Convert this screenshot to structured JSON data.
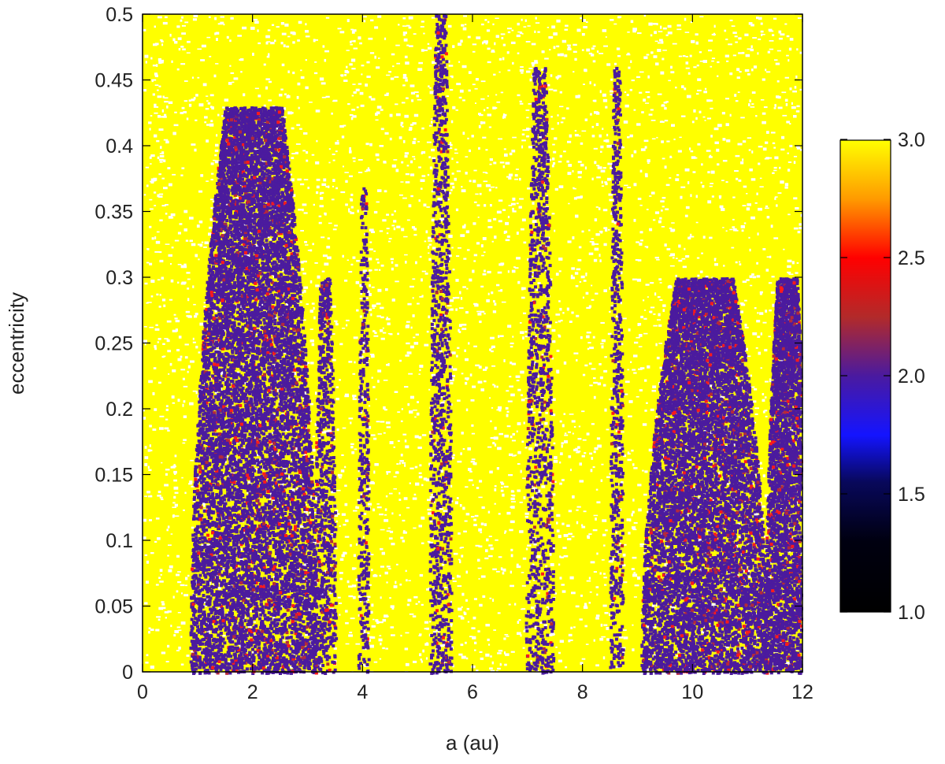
{
  "chart_data": {
    "type": "heatmap",
    "subtype": "scatter-map of test particles colored by stability indicator",
    "xlabel": "a (au)",
    "ylabel": "eccentricity",
    "xlim": [
      0,
      12
    ],
    "ylim": [
      0,
      0.5
    ],
    "xticks": [
      "0",
      "2",
      "4",
      "6",
      "8",
      "10",
      "12"
    ],
    "yticks": [
      "0",
      "0.05",
      "0.1",
      "0.15",
      "0.2",
      "0.25",
      "0.3",
      "0.35",
      "0.4",
      "0.45",
      "0.5"
    ],
    "colorbar": {
      "range": [
        1.0,
        3.0
      ],
      "ticks": [
        "1.0",
        "1.5",
        "2.0",
        "2.5",
        "3.0"
      ],
      "stops": [
        {
          "value": 1.0,
          "color": "#000000"
        },
        {
          "value": 1.3,
          "color": "#000010"
        },
        {
          "value": 1.55,
          "color": "#08085a"
        },
        {
          "value": 1.75,
          "color": "#1414ff"
        },
        {
          "value": 2.0,
          "color": "#4a1aa0"
        },
        {
          "value": 2.25,
          "color": "#b22a2a"
        },
        {
          "value": 2.5,
          "color": "#ff0000"
        },
        {
          "value": 2.75,
          "color": "#ff9a00"
        },
        {
          "value": 3.0,
          "color": "#ffff00"
        }
      ]
    },
    "background_value": 3.0,
    "background_color": "#ffff00",
    "chaotic_color": "#4b1b9e",
    "intermediate_color": "#ff1a1a",
    "unstable_regions": [
      {
        "a_center": 2.0,
        "a_halfwidth": 1.15,
        "e_max": 0.43,
        "density": 0.85
      },
      {
        "a_center": 3.3,
        "a_halfwidth": 0.2,
        "e_max": 0.3,
        "density": 0.35
      },
      {
        "a_center": 4.0,
        "a_halfwidth": 0.1,
        "e_max": 0.37,
        "density": 0.25
      },
      {
        "a_center": 5.4,
        "a_halfwidth": 0.2,
        "e_max": 0.5,
        "density": 0.28
      },
      {
        "a_center": 7.2,
        "a_halfwidth": 0.25,
        "e_max": 0.46,
        "density": 0.25
      },
      {
        "a_center": 8.6,
        "a_halfwidth": 0.12,
        "e_max": 0.46,
        "density": 0.28
      },
      {
        "a_center": 10.2,
        "a_halfwidth": 1.15,
        "e_max": 0.3,
        "density": 0.65
      },
      {
        "a_center": 11.7,
        "a_halfwidth": 0.4,
        "e_max": 0.3,
        "density": 0.85
      }
    ]
  }
}
